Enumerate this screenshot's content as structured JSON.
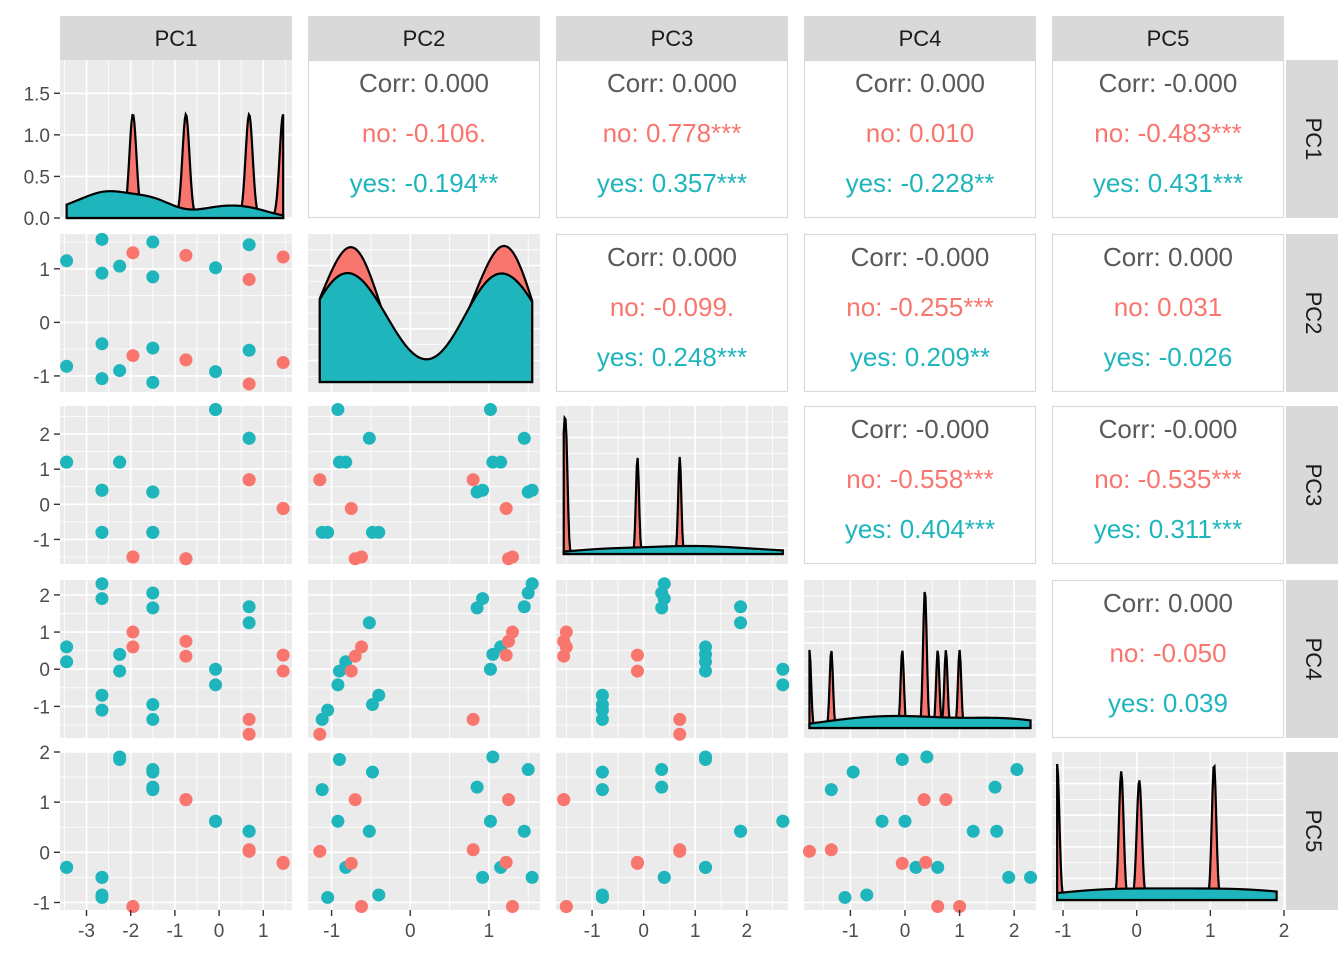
{
  "colors": {
    "no": "#F8766D",
    "yes": "#1FB5BC",
    "overall": "#595959",
    "panel_bg": "#EBEBEB",
    "strip_bg": "#D9D9D9",
    "grid": "#FFFFFF"
  },
  "chart_data": {
    "type": "scatter",
    "kind": "pairs-matrix",
    "variables": [
      "PC1",
      "PC2",
      "PC3",
      "PC4",
      "PC5"
    ],
    "groups": [
      "no",
      "yes"
    ],
    "axes": {
      "PC1": {
        "lim": [
          -3.6,
          1.65
        ],
        "ticks": [
          -3,
          -2,
          -1,
          0,
          1
        ],
        "density_ylim": [
          0,
          1.9
        ],
        "density_ticks": [
          0.0,
          0.5,
          1.0,
          1.5
        ],
        "density_tick_labels": [
          "0.0",
          "0.5",
          "1.0",
          "1.5"
        ]
      },
      "PC2": {
        "lim": [
          -1.3,
          1.65
        ],
        "ticks": [
          -1,
          0,
          1
        ]
      },
      "PC3": {
        "lim": [
          -1.7,
          2.8
        ],
        "ticks": [
          -1,
          0,
          1,
          2
        ]
      },
      "PC4": {
        "lim": [
          -1.85,
          2.4
        ],
        "ticks": [
          -1,
          0,
          1,
          2
        ]
      },
      "PC5": {
        "lim": [
          -1.15,
          2.0
        ],
        "ticks": [
          -1,
          0,
          1,
          2
        ]
      }
    },
    "axis_ticks": {
      "x_variables": [
        "PC1",
        "PC2",
        "PC3",
        "PC4",
        "PC5"
      ],
      "y_variables": [
        "PC1",
        "PC2",
        "PC3",
        "PC4",
        "PC5"
      ]
    },
    "correlations": [
      {
        "row": "PC1",
        "col": "PC2",
        "corr": "Corr: 0.000",
        "no": "no: -0.106.",
        "yes": "yes: -0.194**"
      },
      {
        "row": "PC1",
        "col": "PC3",
        "corr": "Corr: 0.000",
        "no": "no: 0.778***",
        "yes": "yes: 0.357***"
      },
      {
        "row": "PC1",
        "col": "PC4",
        "corr": "Corr: 0.000",
        "no": "no: 0.010",
        "yes": "yes: -0.228**"
      },
      {
        "row": "PC1",
        "col": "PC5",
        "corr": "Corr: -0.000",
        "no": "no: -0.483***",
        "yes": "yes: 0.431***"
      },
      {
        "row": "PC2",
        "col": "PC3",
        "corr": "Corr: 0.000",
        "no": "no: -0.099.",
        "yes": "yes: 0.248***"
      },
      {
        "row": "PC2",
        "col": "PC4",
        "corr": "Corr: -0.000",
        "no": "no: -0.255***",
        "yes": "yes: 0.209**"
      },
      {
        "row": "PC2",
        "col": "PC5",
        "corr": "Corr: 0.000",
        "no": "no: 0.031",
        "yes": "yes: -0.026"
      },
      {
        "row": "PC3",
        "col": "PC4",
        "corr": "Corr: -0.000",
        "no": "no: -0.558***",
        "yes": "yes: 0.404***"
      },
      {
        "row": "PC3",
        "col": "PC5",
        "corr": "Corr: -0.000",
        "no": "no: -0.535***",
        "yes": "yes: 0.311***"
      },
      {
        "row": "PC4",
        "col": "PC5",
        "corr": "Corr: 0.000",
        "no": "no: -0.050",
        "yes": "yes: 0.039"
      }
    ],
    "points": [
      {
        "group": "yes",
        "PC1": -3.45,
        "PC2": 1.15,
        "PC3": 1.2,
        "PC4": 0.6,
        "PC5": -0.3
      },
      {
        "group": "yes",
        "PC1": -3.45,
        "PC2": -0.82,
        "PC3": 1.2,
        "PC4": 0.2,
        "PC5": -0.3
      },
      {
        "group": "yes",
        "PC1": -2.65,
        "PC2": 1.55,
        "PC3": 0.4,
        "PC4": 2.3,
        "PC5": -0.5
      },
      {
        "group": "yes",
        "PC1": -2.65,
        "PC2": 0.92,
        "PC3": 0.4,
        "PC4": 1.9,
        "PC5": -0.5
      },
      {
        "group": "yes",
        "PC1": -2.65,
        "PC2": -0.4,
        "PC3": -0.8,
        "PC4": -0.7,
        "PC5": -0.85
      },
      {
        "group": "yes",
        "PC1": -2.65,
        "PC2": -1.05,
        "PC3": -0.8,
        "PC4": -1.1,
        "PC5": -0.9
      },
      {
        "group": "yes",
        "PC1": -2.25,
        "PC2": 1.05,
        "PC3": 1.2,
        "PC4": 0.4,
        "PC5": 1.9
      },
      {
        "group": "yes",
        "PC1": -2.25,
        "PC2": -0.9,
        "PC3": 1.2,
        "PC4": -0.05,
        "PC5": 1.85
      },
      {
        "group": "no",
        "PC1": -1.95,
        "PC2": 1.3,
        "PC3": -1.5,
        "PC4": 1.0,
        "PC5": -1.08
      },
      {
        "group": "no",
        "PC1": -1.95,
        "PC2": -0.62,
        "PC3": -1.5,
        "PC4": 0.6,
        "PC5": -1.08
      },
      {
        "group": "yes",
        "PC1": -1.5,
        "PC2": 1.5,
        "PC3": 0.35,
        "PC4": 2.05,
        "PC5": 1.65
      },
      {
        "group": "yes",
        "PC1": -1.5,
        "PC2": 0.85,
        "PC3": 0.35,
        "PC4": 1.65,
        "PC5": 1.3
      },
      {
        "group": "yes",
        "PC1": -1.5,
        "PC2": -0.48,
        "PC3": -0.8,
        "PC4": -0.95,
        "PC5": 1.6
      },
      {
        "group": "yes",
        "PC1": -1.5,
        "PC2": -1.12,
        "PC3": -0.8,
        "PC4": -1.35,
        "PC5": 1.25
      },
      {
        "group": "no",
        "PC1": -0.75,
        "PC2": 1.25,
        "PC3": -1.55,
        "PC4": 0.75,
        "PC5": 1.05
      },
      {
        "group": "no",
        "PC1": -0.75,
        "PC2": -0.7,
        "PC3": -1.55,
        "PC4": 0.35,
        "PC5": 1.05
      },
      {
        "group": "yes",
        "PC1": -0.08,
        "PC2": 1.02,
        "PC3": 2.7,
        "PC4": 0.0,
        "PC5": 0.62
      },
      {
        "group": "yes",
        "PC1": -0.08,
        "PC2": -0.92,
        "PC3": 2.7,
        "PC4": -0.42,
        "PC5": 0.62
      },
      {
        "group": "yes",
        "PC1": 0.68,
        "PC2": 1.45,
        "PC3": 1.88,
        "PC4": 1.68,
        "PC5": 0.42
      },
      {
        "group": "yes",
        "PC1": 0.68,
        "PC2": -0.52,
        "PC3": 1.88,
        "PC4": 1.25,
        "PC5": 0.42
      },
      {
        "group": "no",
        "PC1": 0.68,
        "PC2": 0.8,
        "PC3": 0.7,
        "PC4": -1.35,
        "PC5": 0.05
      },
      {
        "group": "no",
        "PC1": 0.68,
        "PC2": -1.15,
        "PC3": 0.7,
        "PC4": -1.75,
        "PC5": 0.02
      },
      {
        "group": "no",
        "PC1": 1.45,
        "PC2": 1.22,
        "PC3": -0.12,
        "PC4": 0.38,
        "PC5": -0.2
      },
      {
        "group": "no",
        "PC1": 1.45,
        "PC2": -0.75,
        "PC3": -0.12,
        "PC4": -0.05,
        "PC5": -0.22
      }
    ]
  }
}
